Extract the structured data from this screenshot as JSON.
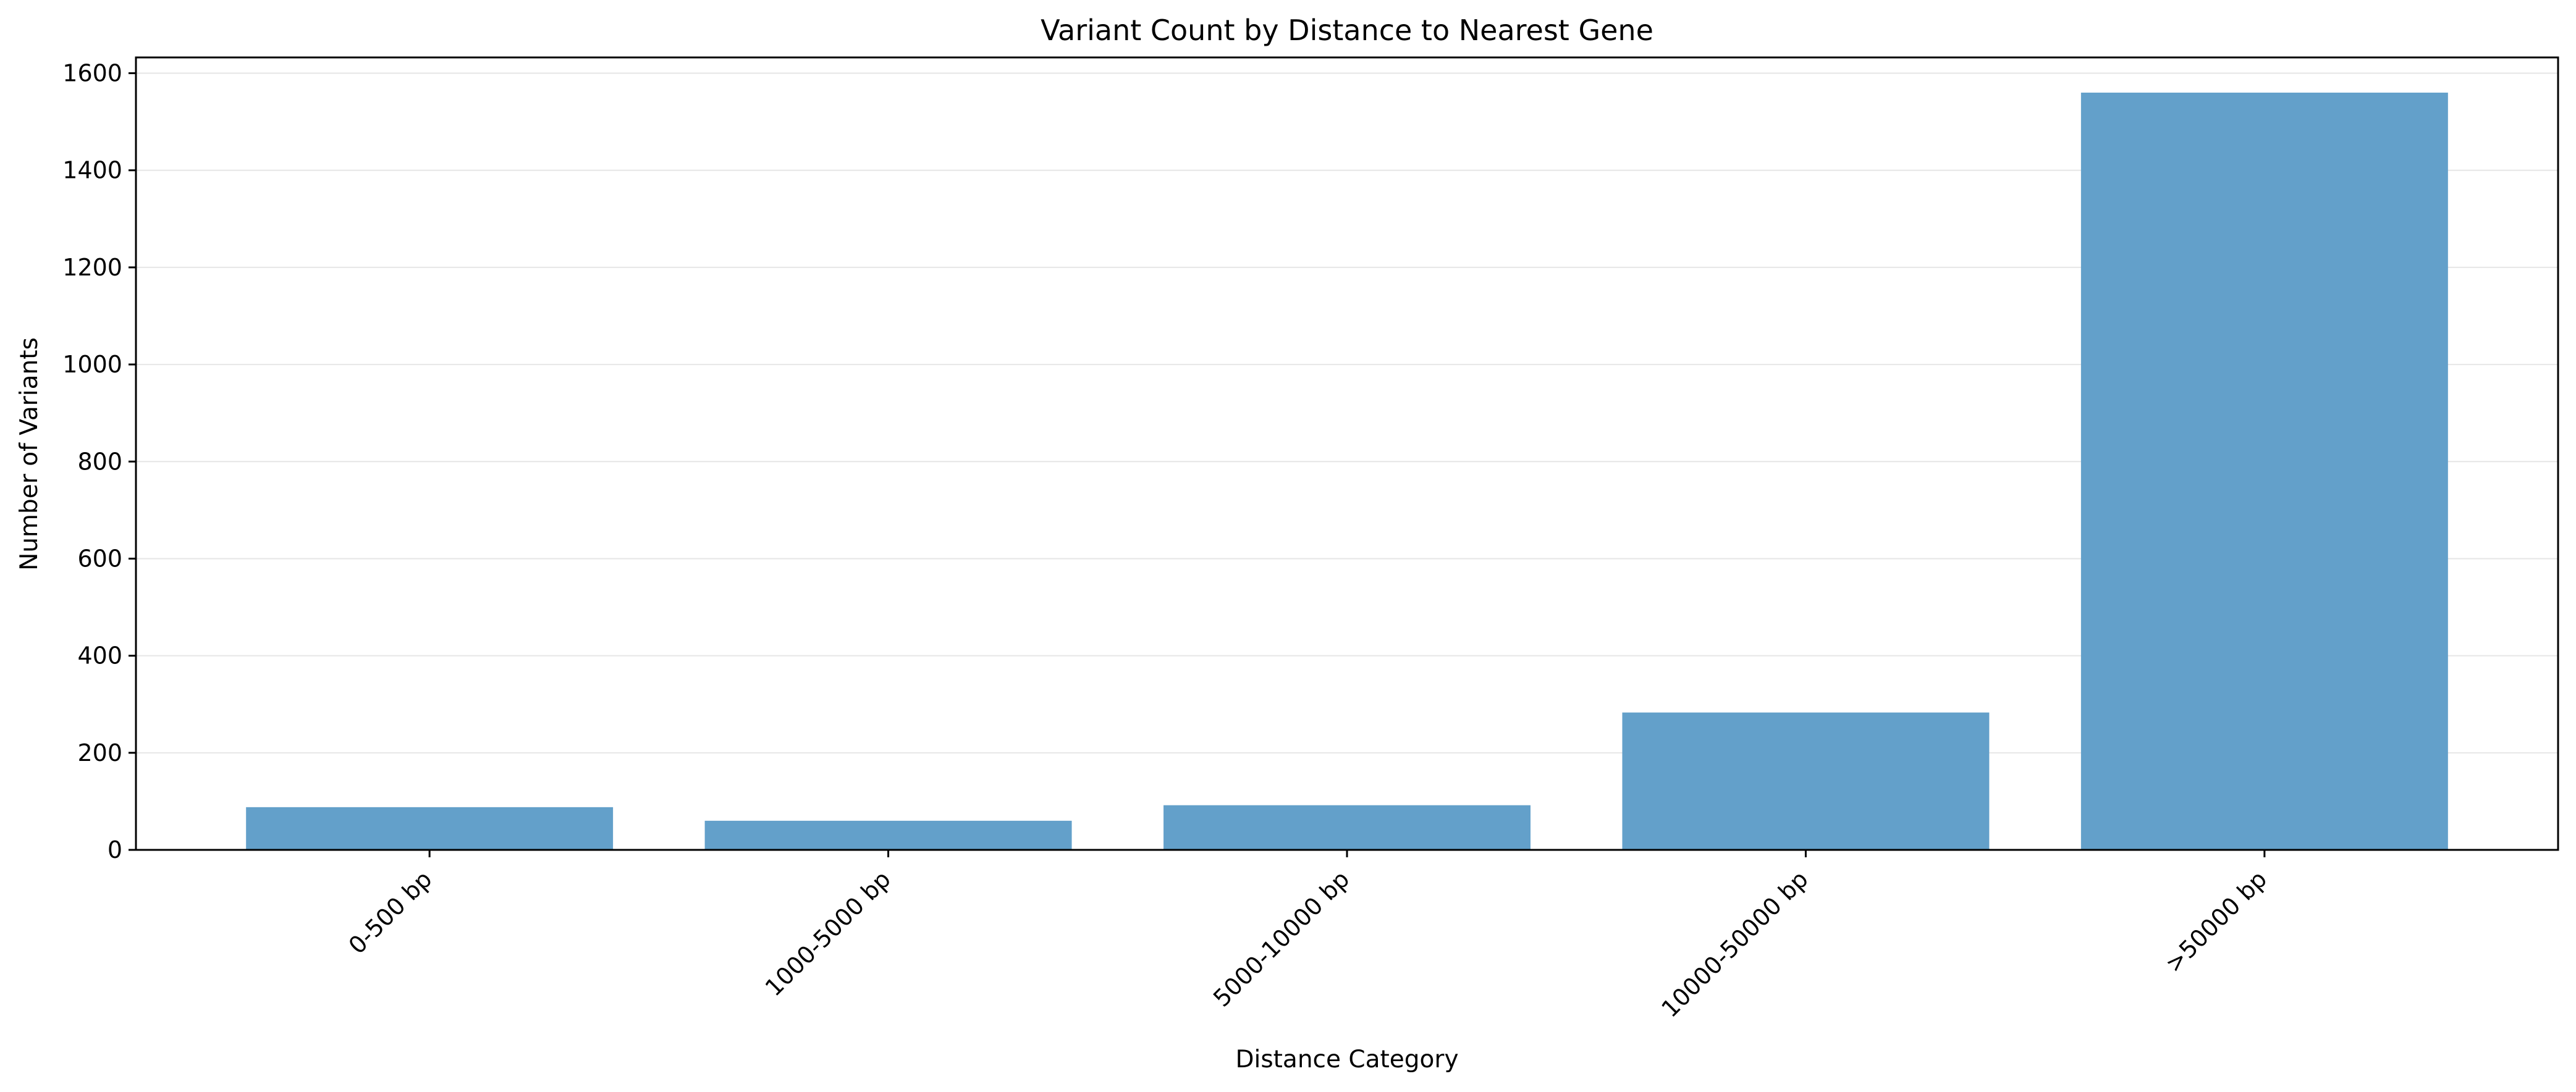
{
  "chart_data": {
    "type": "bar",
    "title": "Variant Count by Distance to Nearest Gene",
    "xlabel": "Distance Category",
    "ylabel": "Number of Variants",
    "categories": [
      "0-500 bp",
      "1000-5000 bp",
      "5000-10000 bp",
      "10000-50000 bp",
      ">50000 bp"
    ],
    "values": [
      88,
      60,
      92,
      283,
      1560
    ],
    "ylim": [
      0,
      1600
    ],
    "yticks": [
      0,
      200,
      400,
      600,
      800,
      1000,
      1200,
      1400,
      1600
    ],
    "ytick_labels": [
      "0",
      "200",
      "400",
      "600",
      "800",
      "1000",
      "1200",
      "1400",
      "1600"
    ],
    "bar_color": "#63a0ca",
    "grid": "horizontal",
    "xtick_rotation": "45"
  }
}
